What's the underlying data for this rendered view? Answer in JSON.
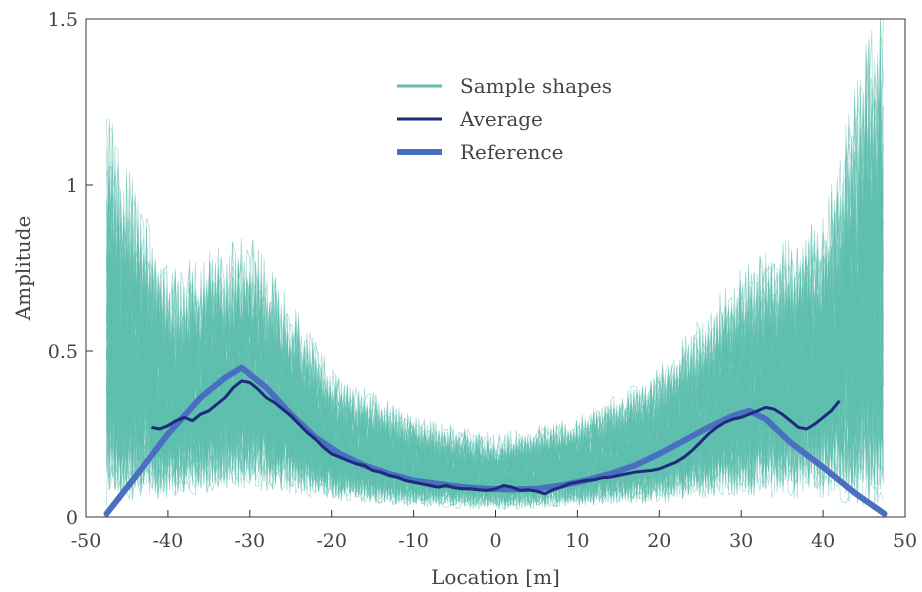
{
  "chart_data": {
    "type": "line",
    "title": "",
    "xlabel": "Location [m]",
    "ylabel": "Amplitude",
    "xlim": [
      -50,
      50
    ],
    "ylim": [
      0,
      1.5
    ],
    "xticks": [
      -50,
      -40,
      -30,
      -20,
      -10,
      0,
      10,
      20,
      30,
      40,
      50
    ],
    "yticks": [
      0,
      0.5,
      1,
      1.5
    ],
    "xtick_labels": [
      "-50",
      "-40",
      "-30",
      "-20",
      "-10",
      "0",
      "10",
      "20",
      "30",
      "40",
      "50"
    ],
    "ytick_labels": [
      "0",
      "0.5",
      "1",
      "1.5"
    ],
    "grid": false,
    "legend_position": "top-center",
    "colors": {
      "samples": "#5fbfae",
      "average": "#1f2a7c",
      "reference": "#4a6fc0"
    },
    "series": [
      {
        "name": "Sample shapes",
        "style": "many semi-transparent thin traces",
        "x_range": [
          -47.5,
          47.5
        ],
        "envelope_x": [
          -47,
          -40,
          -30,
          -20,
          -10,
          0,
          10,
          20,
          30,
          40,
          46
        ],
        "envelope_low": [
          0.02,
          0.05,
          0.08,
          0.05,
          0.03,
          0.02,
          0.03,
          0.04,
          0.06,
          0.05,
          0.02
        ],
        "envelope_high": [
          1.2,
          0.75,
          0.85,
          0.45,
          0.3,
          0.25,
          0.3,
          0.45,
          0.75,
          0.9,
          1.5
        ]
      },
      {
        "name": "Average",
        "x": [
          -42,
          -41,
          -40,
          -39,
          -38,
          -37,
          -36,
          -35,
          -34,
          -33,
          -32,
          -31,
          -30,
          -29,
          -28,
          -27,
          -26,
          -25,
          -24,
          -23,
          -22,
          -21,
          -20,
          -19,
          -18,
          -17,
          -16,
          -15,
          -14,
          -13,
          -12,
          -11,
          -10,
          -9,
          -8,
          -7,
          -6,
          -5,
          -4,
          -3,
          -2,
          -1,
          0,
          1,
          2,
          3,
          4,
          5,
          6,
          7,
          8,
          9,
          10,
          11,
          12,
          13,
          14,
          15,
          16,
          17,
          18,
          19,
          20,
          21,
          22,
          23,
          24,
          25,
          26,
          27,
          28,
          29,
          30,
          31,
          32,
          33,
          34,
          35,
          36,
          37,
          38,
          39,
          40,
          41,
          42
        ],
        "values": [
          0.27,
          0.265,
          0.275,
          0.29,
          0.3,
          0.29,
          0.31,
          0.32,
          0.34,
          0.36,
          0.39,
          0.41,
          0.405,
          0.385,
          0.36,
          0.345,
          0.325,
          0.305,
          0.28,
          0.255,
          0.235,
          0.21,
          0.19,
          0.18,
          0.17,
          0.16,
          0.155,
          0.14,
          0.135,
          0.125,
          0.12,
          0.11,
          0.105,
          0.1,
          0.095,
          0.09,
          0.095,
          0.088,
          0.085,
          0.085,
          0.082,
          0.08,
          0.085,
          0.095,
          0.09,
          0.08,
          0.082,
          0.078,
          0.07,
          0.082,
          0.09,
          0.1,
          0.105,
          0.11,
          0.112,
          0.118,
          0.12,
          0.125,
          0.13,
          0.135,
          0.138,
          0.14,
          0.145,
          0.155,
          0.165,
          0.18,
          0.2,
          0.225,
          0.25,
          0.27,
          0.285,
          0.295,
          0.3,
          0.31,
          0.32,
          0.33,
          0.325,
          0.31,
          0.29,
          0.27,
          0.265,
          0.28,
          0.3,
          0.32,
          0.35
        ]
      },
      {
        "name": "Reference",
        "x": [
          -47.5,
          -44,
          -40,
          -36,
          -33,
          -31,
          -28,
          -25,
          -22,
          -19,
          -16,
          -13,
          -10,
          -7,
          -4,
          -1,
          2,
          5,
          8,
          11,
          14,
          17,
          20,
          23,
          26,
          29,
          31,
          33,
          36,
          40,
          44,
          47.5
        ],
        "values": [
          0.01,
          0.12,
          0.25,
          0.36,
          0.42,
          0.45,
          0.39,
          0.31,
          0.24,
          0.19,
          0.155,
          0.13,
          0.11,
          0.1,
          0.09,
          0.085,
          0.083,
          0.085,
          0.095,
          0.11,
          0.13,
          0.155,
          0.19,
          0.23,
          0.27,
          0.305,
          0.32,
          0.295,
          0.225,
          0.15,
          0.07,
          0.01
        ]
      }
    ]
  }
}
